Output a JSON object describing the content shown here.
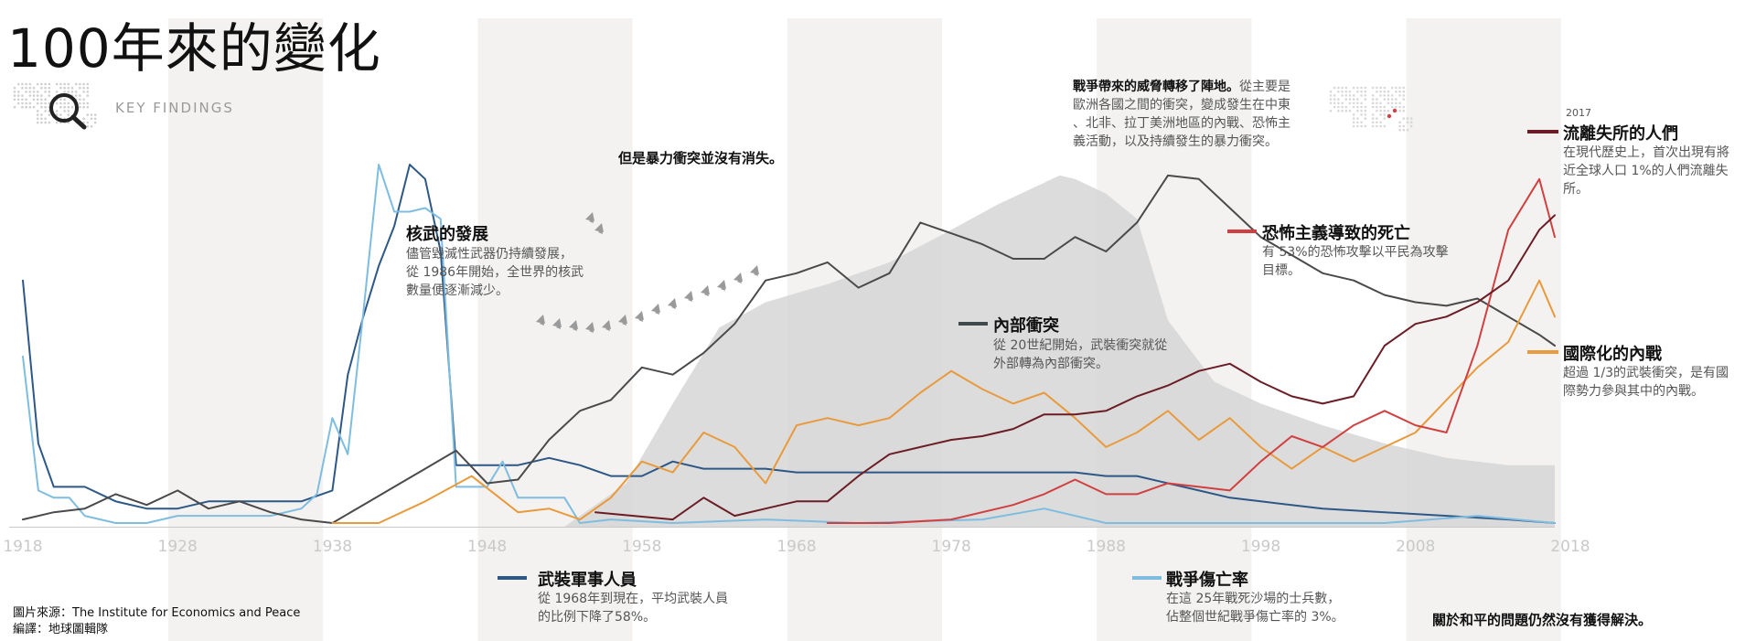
{
  "page": {
    "title": "100年來的變化",
    "key_findings_label": "KEY FINDINGS",
    "source_line": "圖片來源：The Institute for Economics and Peace",
    "editor_line": "編譯：地球圖輯隊"
  },
  "annotations": {
    "nuclear": {
      "title": "核武的發展",
      "desc": [
        "儘管毀滅性武器仍持續發展，",
        "從 1986年開始，全世界的核武",
        "數量便逐漸減少。"
      ]
    },
    "violence": {
      "text": "但是暴力衝突並沒有消失。"
    },
    "threat": {
      "bold": "戰爭帶來的威脅轉移了陣地。",
      "rest": "從主要是",
      "lines": [
        "歐洲各國之間的衝突，變成發生在中東",
        "、北非、拉丁美洲地區的內戰、恐怖主",
        "義活動，以及持續發生的暴力衝突。"
      ]
    },
    "internal": {
      "title": "內部衝突",
      "desc": [
        "從 20世紀開始，武裝衝突就從",
        "外部轉為內部衝突。"
      ]
    },
    "terror": {
      "title": "恐怖主義導致的死亡",
      "desc": [
        "有 53%的恐怖攻擊以平民為攻擊",
        "目標。"
      ]
    },
    "displaced": {
      "year": "2017",
      "title": "流離失所的人們",
      "desc": [
        "在現代歷史上，首次出現有將",
        "近全球人口 1%的人們流離失",
        "所。"
      ]
    },
    "intl_civil": {
      "title": "國際化的內戰",
      "desc": [
        "超過 1/3的武裝衝突，是有國",
        "際勢力參與其中的內戰。"
      ]
    },
    "military": {
      "title": "武裝軍事人員",
      "desc": [
        "從 1968年到現在，平均武裝人員",
        "的比例下降了58%。"
      ]
    },
    "battle": {
      "title": "戰爭傷亡率",
      "desc": [
        "在這 25年戰死沙場的士兵數，",
        "佔整個世紀戰爭傷亡率的 3%。"
      ]
    },
    "peace": {
      "text": "關於和平的問題仍然沒有獲得解決。"
    }
  },
  "chart_data": {
    "type": "line",
    "x_ticks": [
      "1918",
      "1928",
      "1938",
      "1948",
      "1958",
      "1968",
      "1978",
      "1988",
      "1998",
      "2008",
      "2018"
    ],
    "xlim": [
      1918,
      2017
    ],
    "ylim": [
      0,
      100
    ],
    "grid": false,
    "area": {
      "label": "核武的發展",
      "color": "#d6d6d6",
      "x": [
        1953,
        1957,
        1960,
        1963,
        1966,
        1970,
        1974,
        1978,
        1981,
        1983,
        1985,
        1986,
        1988,
        1990,
        1992,
        1995,
        1998,
        2002,
        2006,
        2010,
        2014,
        2017
      ],
      "values": [
        0,
        12,
        34,
        55,
        62,
        67,
        73,
        82,
        89,
        93,
        97,
        96,
        92,
        85,
        57,
        40,
        34,
        28,
        23,
        19,
        17,
        17
      ]
    },
    "series": [
      {
        "name": "武裝軍事人員",
        "color": "#2d5886",
        "x": [
          1918,
          1919,
          1920,
          1922,
          1924,
          1926,
          1928,
          1930,
          1932,
          1934,
          1936,
          1938,
          1939,
          1940,
          1941,
          1942,
          1943,
          1944,
          1945,
          1946,
          1948,
          1950,
          1952,
          1954,
          1956,
          1958,
          1960,
          1962,
          1964,
          1966,
          1968,
          1972,
          1976,
          1980,
          1984,
          1986,
          1988,
          1990,
          1992,
          1994,
          1996,
          1998,
          2002,
          2006,
          2010,
          2014,
          2017
        ],
        "values": [
          68,
          23,
          11,
          11,
          7,
          5,
          5,
          7,
          7,
          7,
          7,
          10,
          42,
          58,
          72,
          83,
          100,
          96,
          76,
          17,
          17,
          17,
          19,
          17,
          14,
          14,
          18,
          16,
          16,
          16,
          15,
          15,
          15,
          15,
          15,
          15,
          14,
          14,
          12,
          10,
          8,
          7,
          5,
          4,
          3,
          2,
          1
        ]
      },
      {
        "name": "戰爭傷亡率",
        "color": "#7fbde0",
        "x": [
          1918,
          1919,
          1920,
          1921,
          1922,
          1924,
          1926,
          1928,
          1930,
          1932,
          1934,
          1936,
          1937,
          1938,
          1939,
          1940,
          1941,
          1942,
          1943,
          1944,
          1945,
          1946,
          1948,
          1949,
          1950,
          1952,
          1953,
          1954,
          1956,
          1960,
          1966,
          1972,
          1980,
          1984,
          1988,
          1994,
          2000,
          2006,
          2012,
          2017
        ],
        "values": [
          47,
          10,
          8,
          8,
          3,
          1,
          1,
          3,
          3,
          3,
          3,
          5,
          9,
          30,
          20,
          59,
          100,
          87,
          87,
          88,
          85,
          11,
          11,
          18,
          8,
          8,
          8,
          1,
          2,
          1,
          2,
          1,
          2,
          5,
          1,
          1,
          1,
          1,
          3,
          1
        ]
      },
      {
        "name": "內部衝突",
        "color": "#4a4a4a",
        "x": [
          1918,
          1920,
          1922,
          1924,
          1926,
          1928,
          1930,
          1932,
          1934,
          1936,
          1938,
          1940,
          1942,
          1944,
          1946,
          1948,
          1950,
          1952,
          1954,
          1956,
          1958,
          1960,
          1962,
          1964,
          1966,
          1968,
          1970,
          1972,
          1974,
          1976,
          1978,
          1980,
          1982,
          1984,
          1986,
          1988,
          1990,
          1992,
          1994,
          1996,
          1998,
          2000,
          2002,
          2004,
          2006,
          2008,
          2010,
          2012,
          2014,
          2016,
          2017
        ],
        "values": [
          2,
          4,
          5,
          9,
          6,
          10,
          5,
          7,
          4,
          2,
          1,
          6,
          11,
          16,
          21,
          12,
          13,
          24,
          32,
          35,
          44,
          42,
          48,
          56,
          68,
          70,
          73,
          66,
          70,
          84,
          81,
          78,
          74,
          74,
          80,
          76,
          84,
          97,
          96,
          88,
          80,
          75,
          70,
          68,
          64,
          62,
          61,
          63,
          58,
          53,
          50
        ]
      },
      {
        "name": "國際化的內戰",
        "color": "#e89a3c",
        "x": [
          1938,
          1941,
          1944,
          1947,
          1950,
          1952,
          1954,
          1956,
          1958,
          1960,
          1962,
          1964,
          1966,
          1968,
          1970,
          1972,
          1974,
          1976,
          1978,
          1980,
          1982,
          1984,
          1986,
          1988,
          1990,
          1992,
          1994,
          1996,
          1998,
          2000,
          2002,
          2004,
          2006,
          2008,
          2010,
          2012,
          2014,
          2016,
          2017
        ],
        "values": [
          1,
          1,
          7,
          14,
          4,
          5,
          2,
          8,
          18,
          15,
          26,
          22,
          12,
          28,
          30,
          28,
          30,
          37,
          43,
          38,
          34,
          37,
          30,
          22,
          26,
          32,
          24,
          30,
          22,
          16,
          22,
          18,
          22,
          26,
          35,
          44,
          51,
          68,
          58
        ]
      },
      {
        "name": "恐怖主義導致的死亡",
        "color": "#d14040",
        "x": [
          1970,
          1974,
          1978,
          1982,
          1984,
          1986,
          1988,
          1990,
          1992,
          1994,
          1996,
          1998,
          2000,
          2002,
          2004,
          2006,
          2008,
          2010,
          2012,
          2014,
          2016,
          2017
        ],
        "values": [
          1,
          1,
          2,
          6,
          9,
          13,
          9,
          9,
          12,
          11,
          10,
          18,
          25,
          22,
          28,
          32,
          28,
          26,
          50,
          82,
          96,
          80
        ]
      },
      {
        "name": "流離失所的人們",
        "color": "#6b1d26",
        "x": [
          1955,
          1960,
          1962,
          1964,
          1966,
          1968,
          1970,
          1972,
          1974,
          1976,
          1978,
          1980,
          1982,
          1984,
          1986,
          1988,
          1990,
          1992,
          1994,
          1996,
          1998,
          2000,
          2002,
          2004,
          2006,
          2008,
          2010,
          2012,
          2014,
          2016,
          2017
        ],
        "values": [
          4,
          2,
          8,
          3,
          5,
          7,
          7,
          14,
          20,
          22,
          24,
          25,
          27,
          31,
          31,
          32,
          36,
          39,
          43,
          45,
          40,
          36,
          34,
          36,
          50,
          56,
          58,
          62,
          68,
          82,
          86
        ]
      }
    ]
  }
}
